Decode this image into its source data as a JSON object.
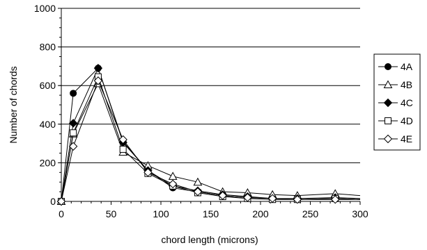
{
  "chart_data": {
    "type": "line",
    "xlabel": "chord length (microns)",
    "ylabel": "Number of chords",
    "xlim": [
      0,
      300
    ],
    "ylim": [
      0,
      1000
    ],
    "xticks": [
      0,
      50,
      100,
      150,
      200,
      250,
      300
    ],
    "yticks": [
      0,
      200,
      400,
      600,
      800,
      1000
    ],
    "grid": "horizontal",
    "legend_position": "right",
    "series": [
      {
        "name": "4A",
        "marker": "filled-circle",
        "x": [
          0,
          12,
          37,
          62,
          87,
          112,
          137,
          162,
          187,
          212,
          237,
          275,
          300
        ],
        "y": [
          0,
          560,
          690,
          310,
          160,
          70,
          50,
          30,
          20,
          15,
          10,
          15,
          10
        ]
      },
      {
        "name": "4B",
        "marker": "open-triangle",
        "x": [
          0,
          12,
          37,
          62,
          87,
          112,
          137,
          162,
          187,
          212,
          237,
          275,
          300
        ],
        "y": [
          0,
          350,
          610,
          255,
          185,
          130,
          100,
          50,
          45,
          35,
          30,
          40,
          30
        ]
      },
      {
        "name": "4C",
        "marker": "filled-diamond",
        "x": [
          0,
          12,
          37,
          62,
          87,
          112,
          137,
          162,
          187,
          212,
          237,
          275,
          300
        ],
        "y": [
          0,
          405,
          690,
          305,
          160,
          80,
          55,
          35,
          25,
          15,
          15,
          20,
          15
        ]
      },
      {
        "name": "4D",
        "marker": "open-square",
        "x": [
          0,
          12,
          37,
          62,
          87,
          112,
          137,
          162,
          187,
          212,
          237,
          275,
          300
        ],
        "y": [
          0,
          355,
          645,
          270,
          145,
          80,
          45,
          25,
          15,
          10,
          10,
          15,
          10
        ]
      },
      {
        "name": "4E",
        "marker": "open-diamond",
        "x": [
          0,
          12,
          37,
          62,
          87,
          112,
          137,
          162,
          187,
          212,
          237,
          275,
          300
        ],
        "y": [
          0,
          285,
          625,
          320,
          150,
          90,
          50,
          30,
          20,
          15,
          10,
          10,
          10
        ]
      }
    ]
  }
}
